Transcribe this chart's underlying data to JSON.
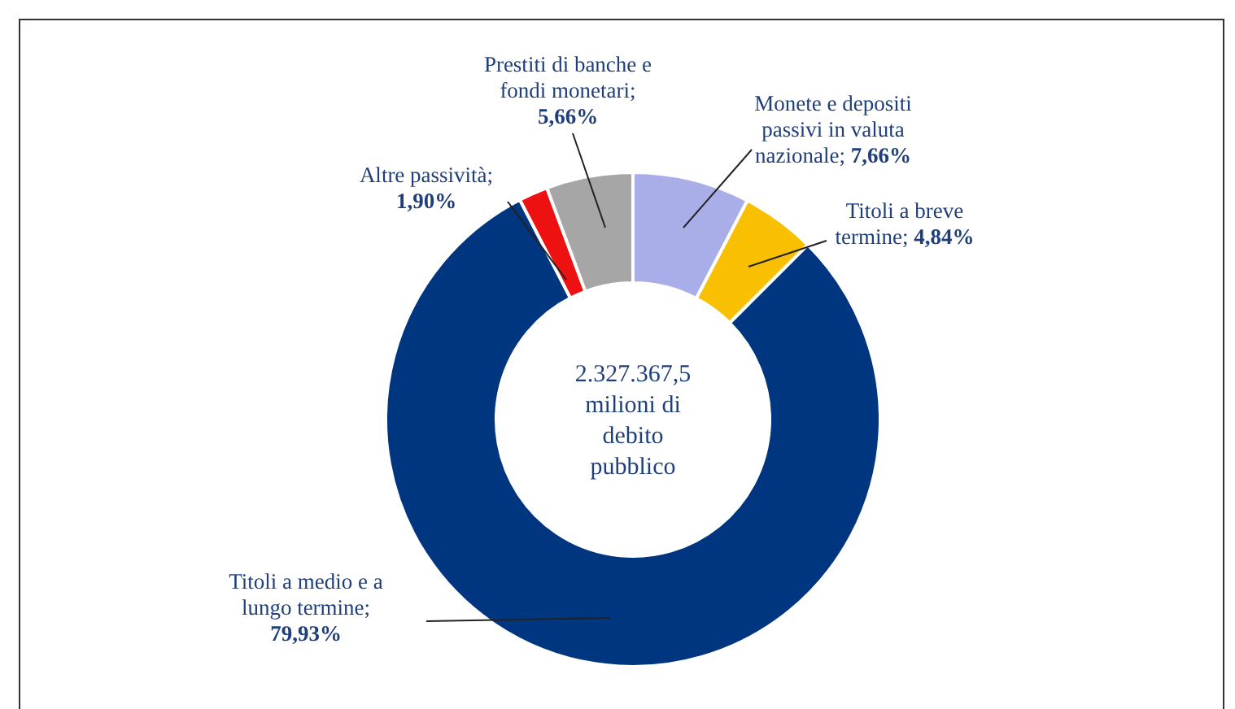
{
  "chart_data": {
    "type": "donut",
    "categories": [
      "Monete e depositi passivi in valuta nazionale",
      "Titoli a breve termine",
      "Titoli a medio e a lungo termine",
      "Altre passività",
      "Prestiti di banche e fondi monetari"
    ],
    "values": [
      7.66,
      4.84,
      79.93,
      1.9,
      5.66
    ],
    "colors": [
      "#aaaee8",
      "#f8c000",
      "#003580",
      "#ee1111",
      "#a6a6a6"
    ],
    "value_labels": [
      "; 7,66%",
      "; 4,84%",
      "; 79,93%",
      "; 1,90%",
      "; 5,66%"
    ],
    "annotations": [
      "2.327.367,5 milioni di debito pubblico"
    ]
  }
}
